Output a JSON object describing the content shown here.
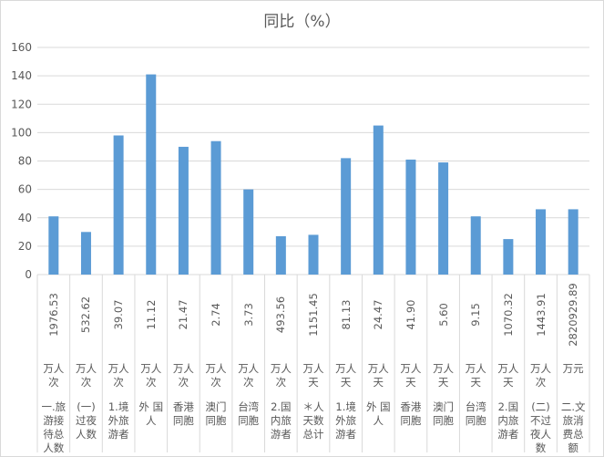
{
  "chart_data": {
    "type": "bar",
    "title": "同比（%）",
    "ylim": [
      0,
      160
    ],
    "yticks": [
      0,
      20,
      40,
      60,
      80,
      100,
      120,
      140,
      160
    ],
    "grid": true,
    "colors": {
      "bar": "#5b9bd5",
      "grid": "#d9d9d9",
      "text": "#595959"
    },
    "categories": [
      {
        "value": "1976.53",
        "unit": "万人次",
        "name": "一.旅游接待总人数"
      },
      {
        "value": "532.62",
        "unit": "万人次",
        "name": "(一)过夜人数"
      },
      {
        "value": "39.07",
        "unit": "万人次",
        "name": "1.境外旅游者"
      },
      {
        "value": "11.12",
        "unit": "万人次",
        "name": "外 国人"
      },
      {
        "value": "21.47",
        "unit": "万人次",
        "name": "香港同胞"
      },
      {
        "value": "2.74",
        "unit": "万人次",
        "name": "澳门同胞"
      },
      {
        "value": "3.73",
        "unit": "万人次",
        "name": "台湾同胞"
      },
      {
        "value": "493.56",
        "unit": "万人次",
        "name": "2.国内旅游者"
      },
      {
        "value": "1151.45",
        "unit": "万人天",
        "name": "＊人天数总计"
      },
      {
        "value": "81.13",
        "unit": "万人天",
        "name": "1.境外旅游者"
      },
      {
        "value": "24.47",
        "unit": "万人天",
        "name": "外 国人"
      },
      {
        "value": "41.90",
        "unit": "万人天",
        "name": "香港同胞"
      },
      {
        "value": "5.60",
        "unit": "万人天",
        "name": "澳门同胞"
      },
      {
        "value": "9.15",
        "unit": "万人天",
        "name": "台湾同胞"
      },
      {
        "value": "1070.32",
        "unit": "万人天",
        "name": "2.国内旅游者"
      },
      {
        "value": "1443.91",
        "unit": "万人次",
        "name": "(二)不过夜人数"
      },
      {
        "value": "2820929.89",
        "unit": "万元",
        "name": "二.文旅消费总额"
      }
    ],
    "series": [
      {
        "values": [
          41,
          30,
          98,
          141,
          90,
          94,
          60,
          27,
          28,
          82,
          105,
          81,
          79,
          41,
          25,
          46,
          46
        ]
      }
    ]
  }
}
